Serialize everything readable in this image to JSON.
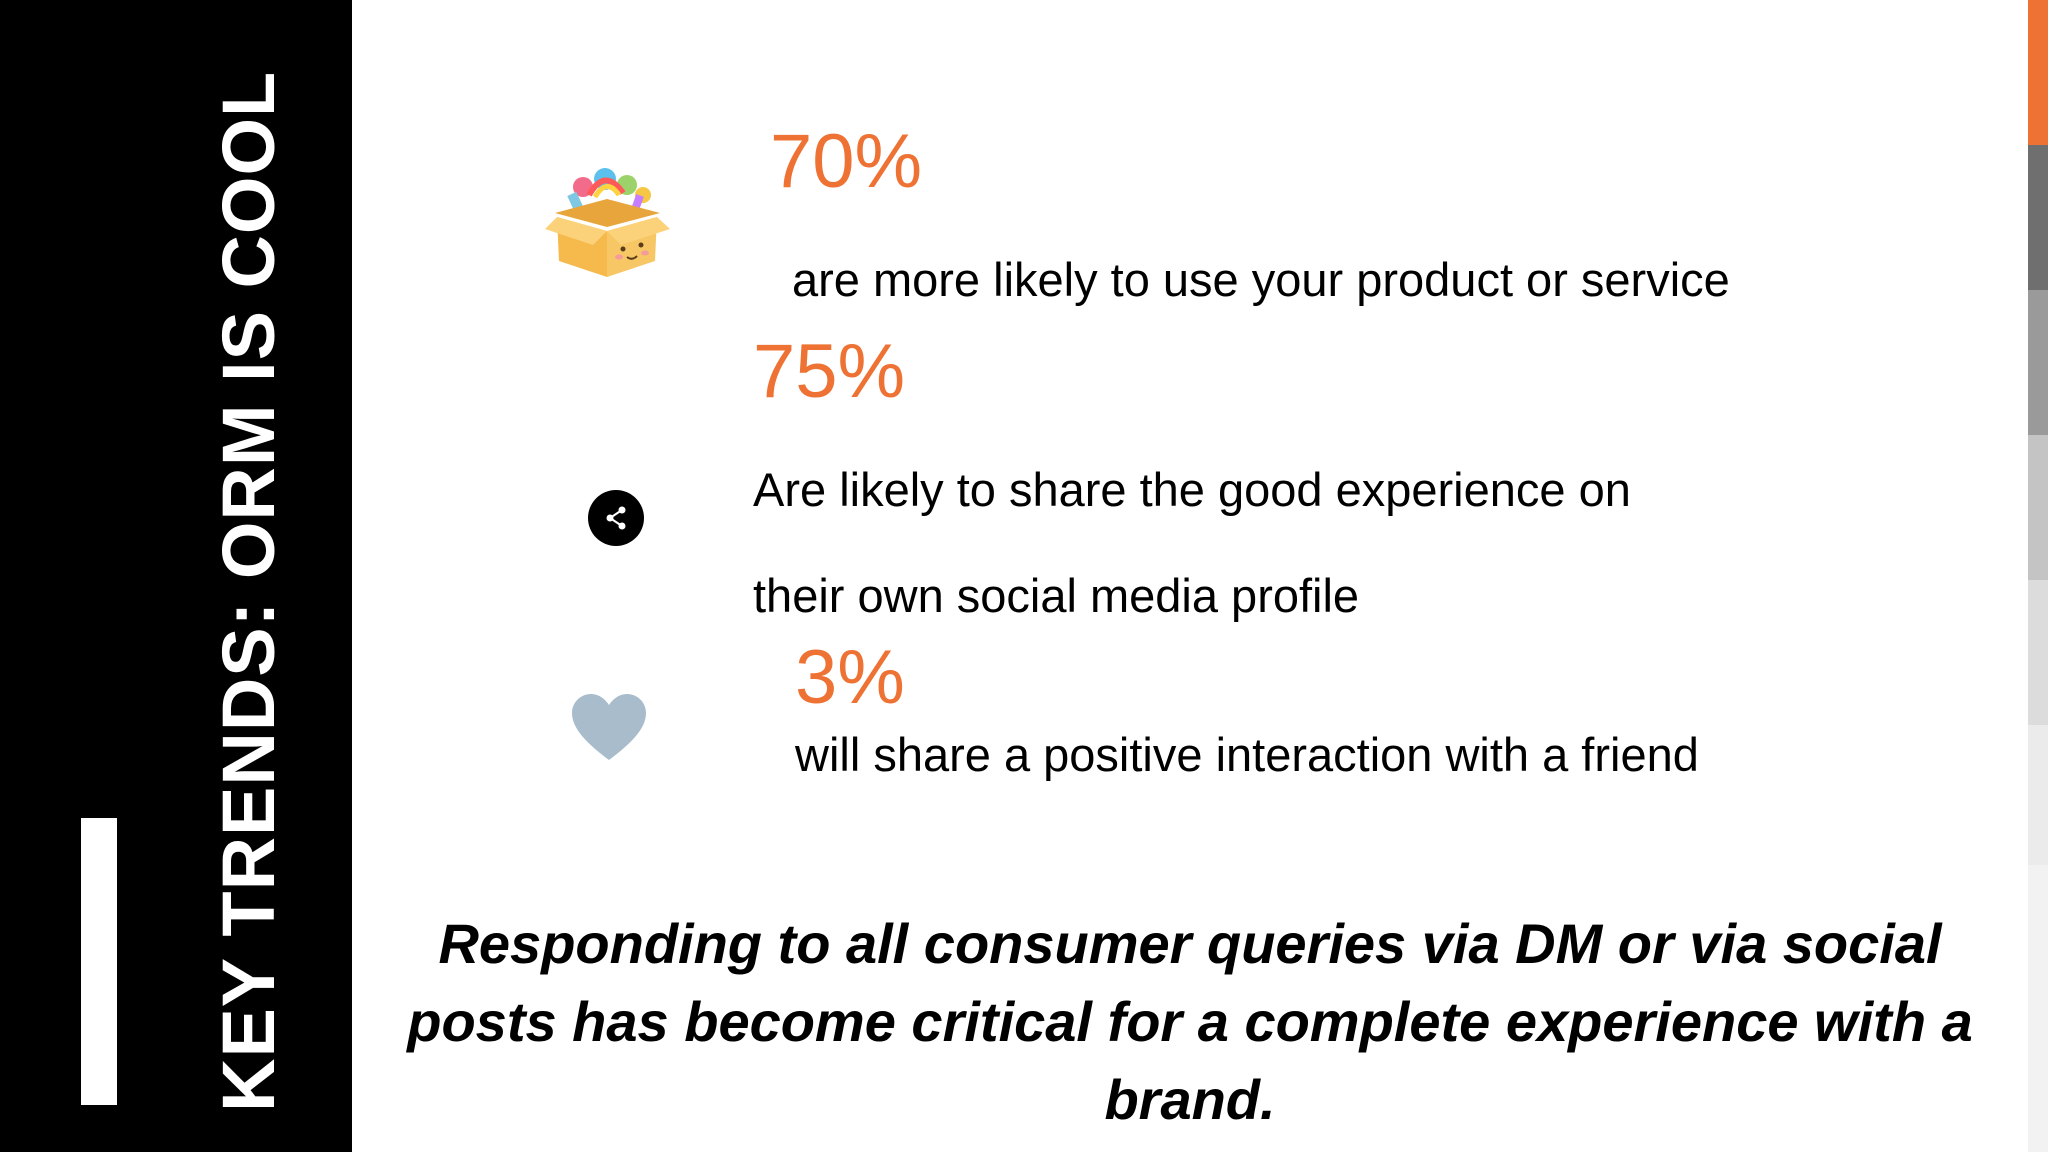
{
  "slide": {
    "vertical_title": "KEY TRENDS: ORM IS COOL",
    "stats": [
      {
        "value": "70%",
        "desc": "are more likely to use your product or service"
      },
      {
        "value": "75%",
        "desc_line1": "Are likely to share the good experience on",
        "desc_line2": "their own social media profile"
      },
      {
        "value": "3%",
        "desc": "will share a positive interaction with a friend"
      }
    ],
    "tagline": "Responding to all consumer queries via DM or via social posts has become critical for a complete experience with a brand."
  },
  "icons": {
    "box": "gift-box-icon",
    "share": "share-icon",
    "heart": "heart-icon"
  },
  "colors": {
    "accent": "#ed7233",
    "sidebar": "#000000",
    "heart": "#a9bccb"
  }
}
